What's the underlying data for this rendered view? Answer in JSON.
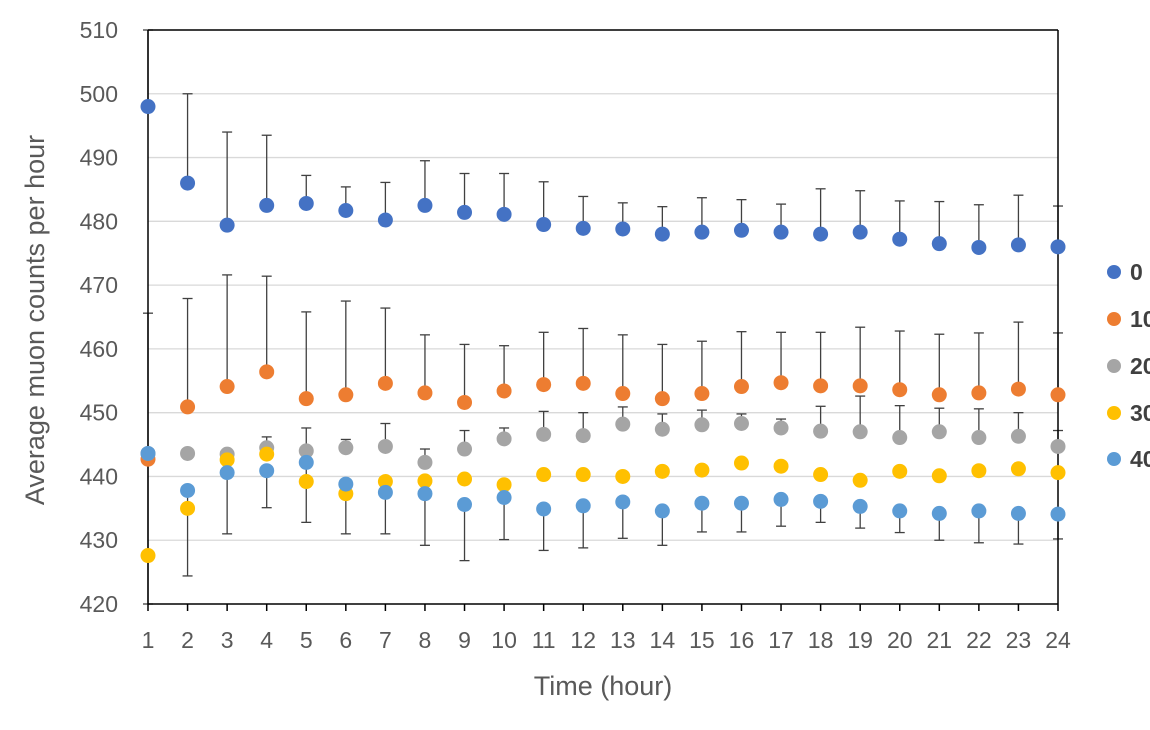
{
  "chart_data": {
    "type": "scatter",
    "title": "",
    "xlabel": "Time (hour)",
    "ylabel": "Average muon counts per hour",
    "x": [
      1,
      2,
      3,
      4,
      5,
      6,
      7,
      8,
      9,
      10,
      11,
      12,
      13,
      14,
      15,
      16,
      17,
      18,
      19,
      20,
      21,
      22,
      23,
      24
    ],
    "x_ticks": [
      "1",
      "2",
      "3",
      "4",
      "5",
      "6",
      "7",
      "8",
      "9",
      "10",
      "11",
      "12",
      "13",
      "14",
      "15",
      "16",
      "17",
      "18",
      "19",
      "20",
      "21",
      "22",
      "23",
      "24"
    ],
    "ylim": [
      420,
      510
    ],
    "y_ticks": [
      "420",
      "430",
      "440",
      "450",
      "460",
      "470",
      "480",
      "490",
      "500",
      "510"
    ],
    "grid": "horizontal",
    "legend_position": "right (partially cut off)",
    "series": [
      {
        "name": "0",
        "color": "#4472C4",
        "values": [
          498.0,
          486.0,
          479.4,
          482.5,
          482.8,
          481.7,
          480.2,
          482.5,
          481.4,
          481.1,
          479.5,
          478.9,
          478.8,
          478.0,
          478.3,
          478.6,
          478.3,
          478.0,
          478.3,
          477.2,
          476.5,
          475.9,
          476.3,
          476.0
        ],
        "error_upper": [
          510.0,
          500.0,
          494.0,
          493.5,
          487.2,
          485.4,
          486.1,
          489.5,
          487.5,
          487.5,
          486.2,
          483.9,
          482.9,
          482.3,
          483.7,
          483.4,
          482.7,
          485.1,
          484.8,
          483.2,
          483.1,
          482.6,
          484.1,
          482.4
        ]
      },
      {
        "name": "10",
        "color": "#ED7D31",
        "values": [
          442.7,
          450.9,
          454.1,
          456.4,
          452.2,
          452.8,
          454.6,
          453.1,
          451.6,
          453.4,
          454.4,
          454.6,
          453.0,
          452.2,
          453.0,
          454.1,
          454.7,
          454.2,
          454.2,
          453.6,
          452.8,
          453.1,
          453.7,
          452.8
        ],
        "error_upper": [
          465.6,
          467.9,
          471.6,
          471.4,
          465.8,
          467.5,
          466.4,
          462.2,
          460.7,
          460.5,
          462.6,
          463.2,
          462.2,
          460.7,
          461.2,
          462.7,
          462.6,
          462.6,
          463.4,
          462.8,
          462.3,
          462.5,
          464.2,
          462.5
        ]
      },
      {
        "name": "20",
        "color": "#A5A5A5",
        "values": [
          443.6,
          443.6,
          443.5,
          444.5,
          444.0,
          444.5,
          444.7,
          442.2,
          444.3,
          445.9,
          446.6,
          446.4,
          448.2,
          447.4,
          448.1,
          448.3,
          447.6,
          447.1,
          447.0,
          446.1,
          447.0,
          446.1,
          446.3,
          444.7
        ],
        "error_upper": [
          443.6,
          443.6,
          443.5,
          446.2,
          447.6,
          445.8,
          448.3,
          444.3,
          447.2,
          447.6,
          450.2,
          450.0,
          450.9,
          449.8,
          450.4,
          449.8,
          449.0,
          451.0,
          452.6,
          451.1,
          450.7,
          450.6,
          450.0,
          447.2
        ]
      },
      {
        "name": "30",
        "color": "#FFC000",
        "values": [
          427.6,
          435.0,
          442.6,
          443.5,
          439.2,
          437.3,
          439.2,
          439.3,
          439.6,
          438.7,
          440.3,
          440.3,
          440.0,
          440.8,
          441.0,
          442.1,
          441.6,
          440.3,
          439.4,
          440.8,
          440.1,
          440.9,
          441.2,
          440.6
        ],
        "error_upper": [
          427.6,
          435.0,
          442.6,
          443.5,
          439.2,
          437.3,
          439.2,
          439.3,
          439.6,
          438.7,
          440.3,
          440.3,
          440.0,
          440.8,
          441.0,
          442.1,
          441.6,
          440.3,
          439.4,
          440.8,
          440.1,
          440.9,
          441.2,
          440.6
        ]
      },
      {
        "name": "40",
        "color": "#5B9BD5",
        "values": [
          443.6,
          437.8,
          440.6,
          440.9,
          442.2,
          438.8,
          437.5,
          437.3,
          435.6,
          436.7,
          434.9,
          435.4,
          436.0,
          434.6,
          435.8,
          435.8,
          436.4,
          436.1,
          435.3,
          434.6,
          434.2,
          434.6,
          434.2,
          434.1
        ],
        "error_upper": [
          443.6,
          437.8,
          440.6,
          440.9,
          442.2,
          438.8,
          437.5,
          437.3,
          435.6,
          436.7,
          434.9,
          435.4,
          436.0,
          434.6,
          435.8,
          435.8,
          436.4,
          436.1,
          435.3,
          434.6,
          434.2,
          434.6,
          434.2,
          434.1
        ],
        "error_lower": [
          420.0,
          424.4,
          431.0,
          435.1,
          432.8,
          431.0,
          431.0,
          429.2,
          426.8,
          430.1,
          428.4,
          428.8,
          430.3,
          429.2,
          431.3,
          431.3,
          432.2,
          432.8,
          431.9,
          431.2,
          430.0,
          429.6,
          429.4,
          430.2
        ]
      }
    ],
    "legend": [
      "0",
      "10",
      "20",
      "30",
      "40"
    ]
  }
}
